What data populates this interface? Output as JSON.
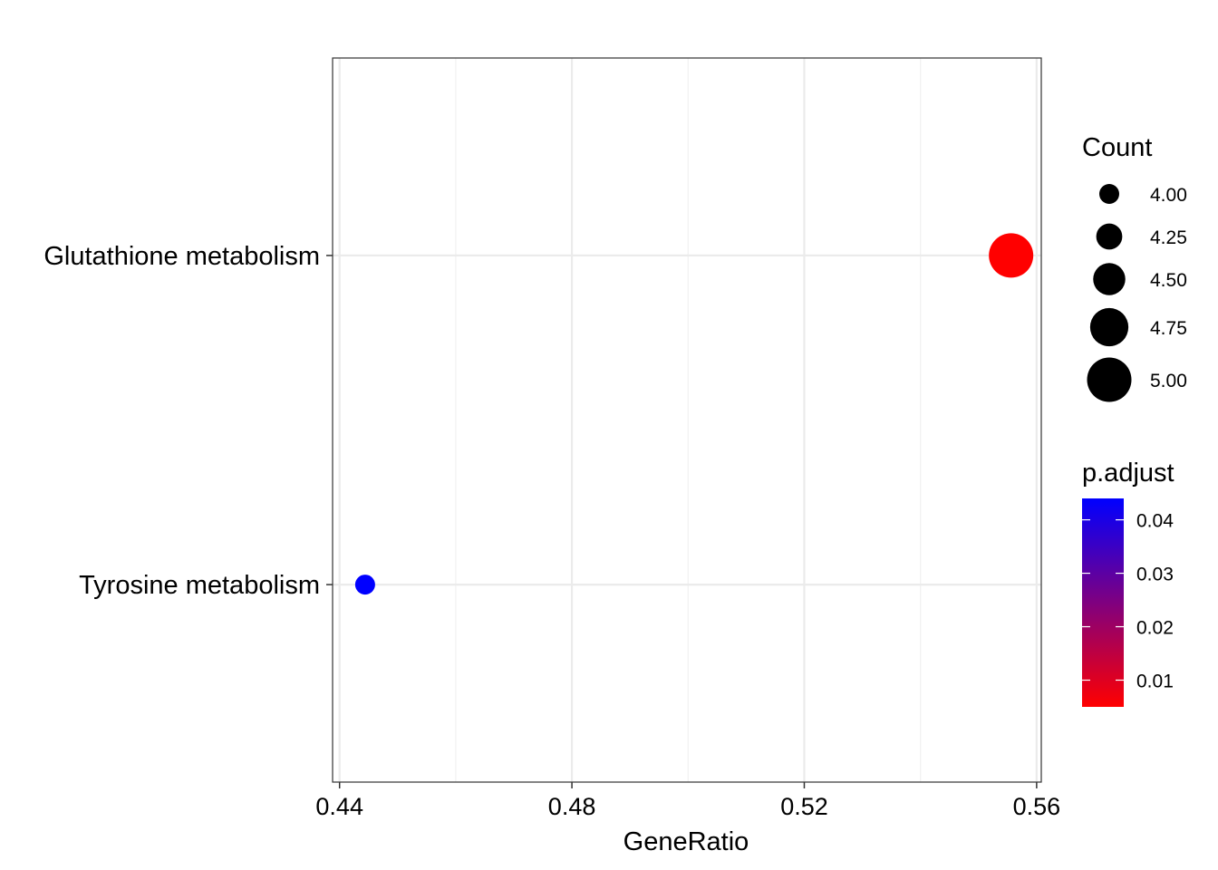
{
  "chart_data": {
    "type": "scatter",
    "xlabel": "GeneRatio",
    "ylabel": "",
    "xlim": [
      0.4388,
      0.5608
    ],
    "x_ticks": [
      {
        "value": 0.44,
        "label": "0.44"
      },
      {
        "value": 0.48,
        "label": "0.48"
      },
      {
        "value": 0.52,
        "label": "0.52"
      },
      {
        "value": 0.56,
        "label": "0.56"
      }
    ],
    "x_minor_ticks": [
      0.46,
      0.5,
      0.54
    ],
    "categories": [
      "Glutathione metabolism",
      "Tyrosine metabolism"
    ],
    "points": [
      {
        "category": "Glutathione metabolism",
        "x": 0.5556,
        "count": 5,
        "p_adjust": 0.005
      },
      {
        "category": "Tyrosine metabolism",
        "x": 0.4444,
        "count": 4,
        "p_adjust": 0.044
      }
    ],
    "grid": true,
    "legend_position": "right",
    "size_legend": {
      "title": "Count",
      "items": [
        {
          "value": 4.0,
          "label": "4.00"
        },
        {
          "value": 4.25,
          "label": "4.25"
        },
        {
          "value": 4.5,
          "label": "4.50"
        },
        {
          "value": 4.75,
          "label": "4.75"
        },
        {
          "value": 5.0,
          "label": "5.00"
        }
      ]
    },
    "color_legend": {
      "title": "p.adjust",
      "low_color": "#FF0000",
      "high_color": "#0000FF",
      "range": [
        0.005,
        0.044
      ],
      "ticks": [
        {
          "value": 0.04,
          "label": "0.04"
        },
        {
          "value": 0.03,
          "label": "0.03"
        },
        {
          "value": 0.02,
          "label": "0.02"
        },
        {
          "value": 0.01,
          "label": "0.01"
        }
      ]
    }
  }
}
